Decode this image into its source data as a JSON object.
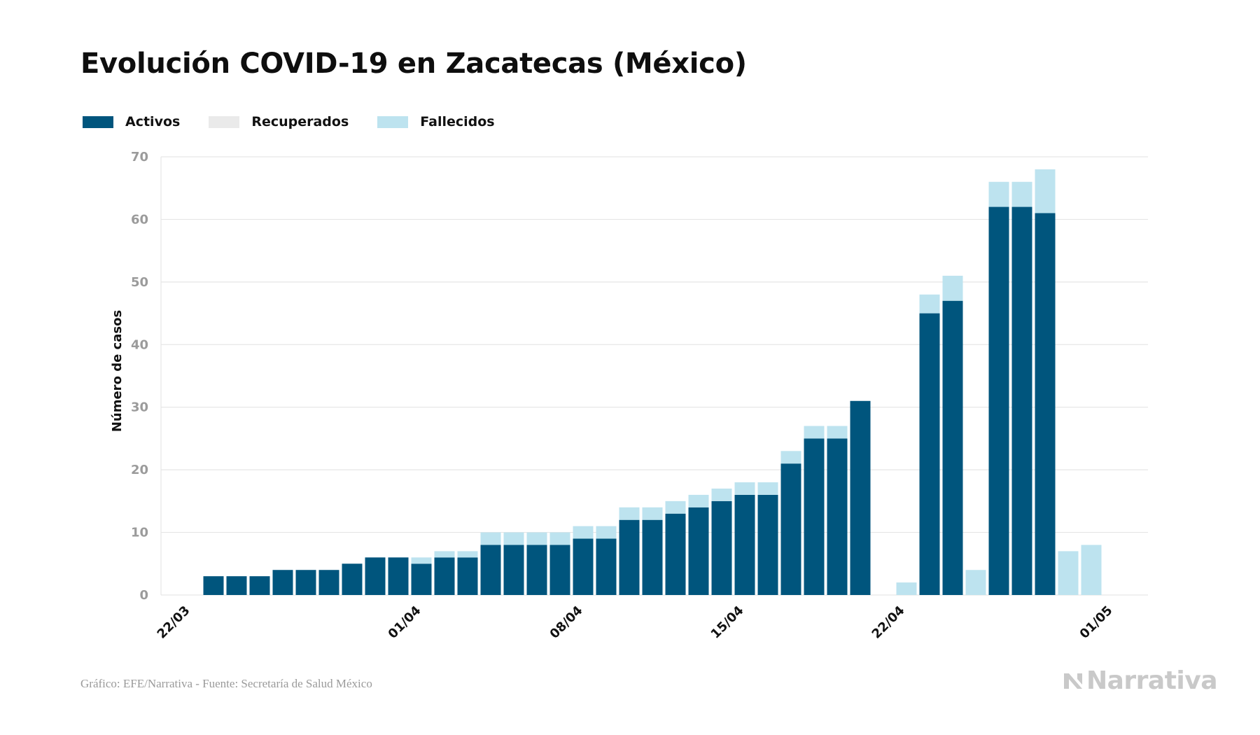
{
  "title": "Evolución COVID-19 en Zacatecas (México)",
  "legend": [
    {
      "label": "Activos",
      "color": "#00557d"
    },
    {
      "label": "Recuperados",
      "color": "#eaeaea"
    },
    {
      "label": "Fallecidos",
      "color": "#bde3ef"
    }
  ],
  "footer": "Gráfico: EFE/Narrativa - Fuente: Secretaría de Salud México",
  "brand": "Narrativa",
  "chart_data": {
    "type": "bar",
    "stacked": true,
    "ylabel": "Número de casos",
    "ylim": [
      0,
      70
    ],
    "yticks": [
      0,
      10,
      20,
      30,
      40,
      50,
      60,
      70
    ],
    "grid": true,
    "legend_position": "top-left",
    "xticks": [
      "22/03",
      "01/04",
      "08/04",
      "15/04",
      "22/04",
      "01/05"
    ],
    "categories": [
      "23/03",
      "24/03",
      "25/03",
      "26/03",
      "27/03",
      "28/03",
      "29/03",
      "30/03",
      "31/03",
      "01/04",
      "02/04",
      "03/04",
      "04/04",
      "05/04",
      "06/04",
      "07/04",
      "08/04",
      "09/04",
      "10/04",
      "11/04",
      "12/04",
      "13/04",
      "14/04",
      "15/04",
      "16/04",
      "17/04",
      "18/04",
      "19/04",
      "20/04",
      "21/04",
      "22/04",
      "23/04",
      "24/04",
      "25/04",
      "26/04",
      "27/04",
      "28/04",
      "29/04",
      "30/04",
      "01/05"
    ],
    "series": [
      {
        "name": "Activos",
        "color": "#00557d",
        "values": [
          3,
          3,
          3,
          4,
          4,
          4,
          5,
          6,
          6,
          5,
          6,
          6,
          8,
          8,
          8,
          8,
          9,
          9,
          12,
          12,
          13,
          14,
          15,
          16,
          16,
          21,
          25,
          25,
          31,
          0,
          0,
          45,
          47,
          0,
          62,
          62,
          61,
          0,
          0,
          0
        ]
      },
      {
        "name": "Recuperados",
        "color": "#eaeaea",
        "values": [
          0,
          0,
          0,
          0,
          0,
          0,
          0,
          0,
          0,
          0,
          0,
          0,
          0,
          0,
          0,
          0,
          0,
          0,
          0,
          0,
          0,
          0,
          0,
          0,
          0,
          0,
          0,
          0,
          0,
          0,
          0,
          0,
          0,
          0,
          0,
          0,
          0,
          0,
          0,
          0
        ]
      },
      {
        "name": "Fallecidos",
        "color": "#bde3ef",
        "values": [
          0,
          0,
          0,
          0,
          0,
          0,
          0,
          0,
          0,
          1,
          1,
          1,
          2,
          2,
          2,
          2,
          2,
          2,
          2,
          2,
          2,
          2,
          2,
          2,
          2,
          2,
          2,
          2,
          0,
          0,
          2,
          3,
          4,
          4,
          4,
          4,
          7,
          7,
          8,
          0
        ]
      }
    ]
  }
}
